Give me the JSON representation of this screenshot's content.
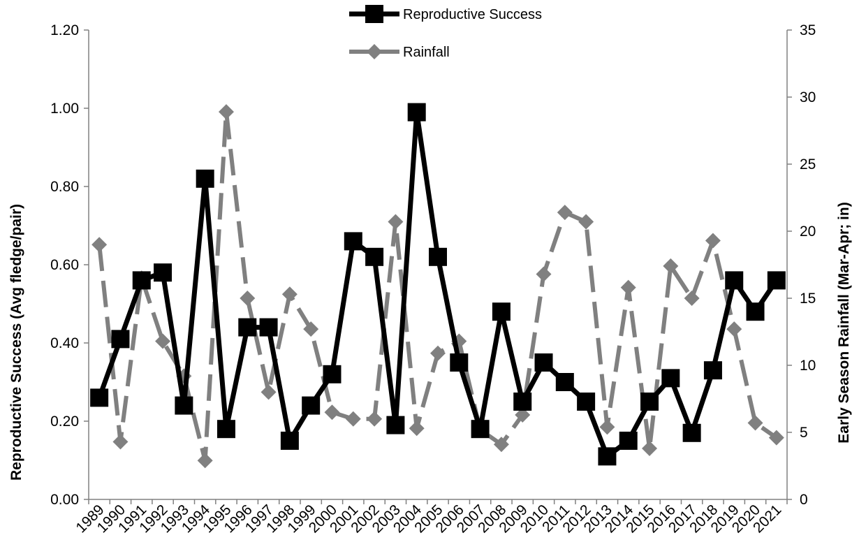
{
  "chart_data": {
    "type": "line",
    "categories": [
      "1989",
      "1990",
      "1991",
      "1992",
      "1993",
      "1994",
      "1995",
      "1996",
      "1997",
      "1998",
      "1999",
      "2000",
      "2001",
      "2002",
      "2003",
      "2004",
      "2005",
      "2006",
      "2007",
      "2008",
      "2009",
      "2010",
      "2011",
      "2012",
      "2013",
      "2014",
      "2015",
      "2016",
      "2017",
      "2018",
      "2019",
      "2020",
      "2021"
    ],
    "series": [
      {
        "name": "Reproductive Success",
        "axis": "left",
        "color": "#000000",
        "marker": "square",
        "line": "solid",
        "values": [
          0.26,
          0.41,
          0.56,
          0.58,
          0.24,
          0.82,
          0.18,
          0.44,
          0.44,
          0.15,
          0.24,
          0.32,
          0.66,
          0.62,
          0.19,
          0.99,
          0.62,
          0.35,
          0.18,
          0.48,
          0.25,
          0.35,
          0.3,
          0.25,
          0.11,
          0.15,
          0.25,
          0.31,
          0.17,
          0.33,
          0.56,
          0.48,
          0.56
        ]
      },
      {
        "name": "Rainfall",
        "axis": "right",
        "color": "#808080",
        "marker": "diamond",
        "line": "dashed",
        "values": [
          19.0,
          4.3,
          16.5,
          11.8,
          9.2,
          2.9,
          28.9,
          15.0,
          8.0,
          15.3,
          12.7,
          6.5,
          6.0,
          6.0,
          20.7,
          5.3,
          10.9,
          11.8,
          5.2,
          4.1,
          6.3,
          16.8,
          21.4,
          20.7,
          5.4,
          15.8,
          3.8,
          17.4,
          15.0,
          19.3,
          12.7,
          5.7,
          4.6
        ]
      }
    ],
    "ylabel": "Reproductive Success (Avg fledge/pair)",
    "y2label": "Early Season Rainfall (Mar-Apr; in)",
    "ylim": [
      0,
      1.2
    ],
    "y2lim": [
      0,
      35
    ],
    "yticks": [
      "0.00",
      "0.20",
      "0.40",
      "0.60",
      "0.80",
      "1.00",
      "1.20"
    ],
    "y2ticks": [
      "0",
      "5",
      "10",
      "15",
      "20",
      "25",
      "30",
      "35"
    ],
    "legend": "top-center",
    "grid": false
  }
}
